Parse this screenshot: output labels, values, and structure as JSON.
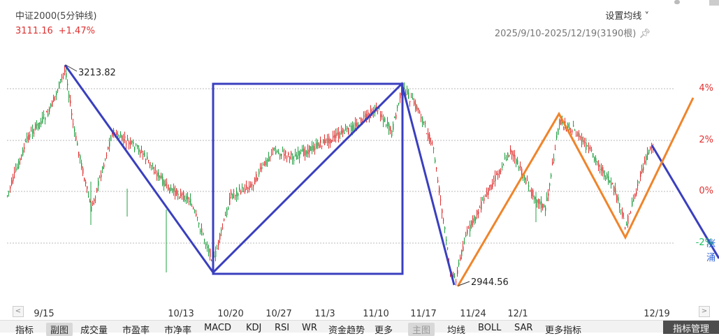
{
  "header": {
    "title": "中证2000(5分钟线)",
    "price": "3111.16",
    "change": "+1.47%",
    "setting_label": "设置均线 ˅",
    "range_label": "2025/9/10-2025/12/19(3190根)",
    "pin_icon": "pin-icon"
  },
  "chart_data": {
    "type": "line",
    "title": "中证2000(5分钟线)",
    "xlabel": "",
    "ylabel": "",
    "x_ticks": [
      "9/15",
      "10/13",
      "10/20",
      "10/27",
      "11/3",
      "11/10",
      "11/17",
      "11/24",
      "12/1",
      "12/19"
    ],
    "y_ticks_right": [
      "4%",
      "2%",
      "0%",
      "-2%"
    ],
    "y_tick_colors": [
      "#e03030",
      "#e03030",
      "#e03030",
      "#20c060"
    ],
    "ylim": [
      2900,
      3280
    ],
    "grid": true,
    "annotations": [
      {
        "text": "3213.82",
        "note": "high"
      },
      {
        "text": "2944.56",
        "note": "low"
      }
    ],
    "overlay_lines": [
      {
        "color": "#3a3fbf",
        "description": "blue trend line (manual drawing)"
      },
      {
        "color": "#f0842a",
        "description": "orange zigzag projection (manual drawing)"
      }
    ],
    "colors": {
      "up": "#e03030",
      "down": "#20a040",
      "blue_line": "#3a3fbf",
      "orange_line": "#f0842a"
    }
  },
  "tabs": {
    "left": [
      "指标",
      "副图",
      "成交量",
      "市盈率",
      "市净率",
      "MACD",
      "KDJ",
      "RSI",
      "WR",
      "资金趋势",
      "更多"
    ],
    "right": [
      "主图",
      "均线",
      "BOLL",
      "SAR",
      "更多指标"
    ],
    "manage": "指标管理"
  },
  "partial_right_labels": [
    "涨",
    "涌"
  ]
}
